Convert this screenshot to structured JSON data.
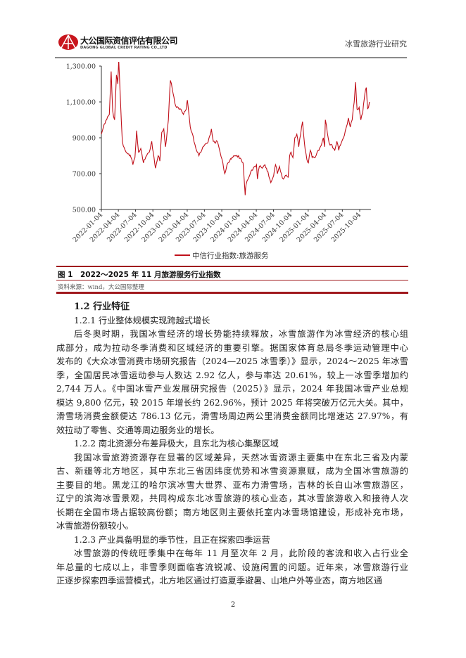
{
  "header": {
    "company_name": "大公国际资信评估有限公司",
    "company_name_en": "DAGONG GLOBAL CREDIT RATING CO.,LTD",
    "report_title": "冰雪旅游行业研究"
  },
  "chart_data": {
    "type": "line",
    "title": "",
    "xlabel": "",
    "ylabel": "",
    "ylim": [
      500,
      1400
    ],
    "yticks": [
      "500.00",
      "700.00",
      "900.00",
      "1,100.00",
      "1,300.00"
    ],
    "ytick_values": [
      500,
      700,
      900,
      1100,
      1300
    ],
    "xticks": [
      "2022-01-04",
      "2022-04-04",
      "2022-07-04",
      "2022-10-04",
      "2023-01-04",
      "2023-04-04",
      "2023-07-04",
      "2023-10-04",
      "2024-01-04",
      "2024-04-04",
      "2024-07-04",
      "2024-10-04",
      "2025-01-04",
      "2025-04-04",
      "2025-07-04",
      "2025-10-04"
    ],
    "grid": false,
    "legend_position": "bottom",
    "color": "#c0101a",
    "series": [
      {
        "name": "中信行业指数:旅游服务",
        "points": [
          [
            "2022-01-04",
            920
          ],
          [
            "2022-01-15",
            960
          ],
          [
            "2022-02-01",
            1000
          ],
          [
            "2022-02-15",
            1030
          ],
          [
            "2022-02-25",
            1270
          ],
          [
            "2022-03-05",
            1050
          ],
          [
            "2022-03-15",
            1000
          ],
          [
            "2022-03-25",
            1250
          ],
          [
            "2022-04-01",
            1200
          ],
          [
            "2022-04-06",
            1330
          ],
          [
            "2022-04-15",
            1110
          ],
          [
            "2022-04-25",
            880
          ],
          [
            "2022-05-10",
            830
          ],
          [
            "2022-05-25",
            810
          ],
          [
            "2022-06-10",
            790
          ],
          [
            "2022-06-20",
            750
          ],
          [
            "2022-07-01",
            790
          ],
          [
            "2022-07-10",
            940
          ],
          [
            "2022-07-20",
            820
          ],
          [
            "2022-08-01",
            840
          ],
          [
            "2022-08-15",
            760
          ],
          [
            "2022-09-01",
            800
          ],
          [
            "2022-09-15",
            820
          ],
          [
            "2022-09-28",
            880
          ],
          [
            "2022-10-10",
            790
          ],
          [
            "2022-10-18",
            730
          ],
          [
            "2022-11-01",
            800
          ],
          [
            "2022-11-10",
            770
          ],
          [
            "2022-11-20",
            930
          ],
          [
            "2022-12-01",
            950
          ],
          [
            "2022-12-10",
            850
          ],
          [
            "2022-12-25",
            1000
          ],
          [
            "2023-01-01",
            1150
          ],
          [
            "2023-01-05",
            1220
          ],
          [
            "2023-01-15",
            1170
          ],
          [
            "2023-02-01",
            1080
          ],
          [
            "2023-02-15",
            1070
          ],
          [
            "2023-03-01",
            1060
          ],
          [
            "2023-03-15",
            1030
          ],
          [
            "2023-03-30",
            1060
          ],
          [
            "2023-04-05",
            1110
          ],
          [
            "2023-04-20",
            960
          ],
          [
            "2023-05-05",
            910
          ],
          [
            "2023-05-20",
            840
          ],
          [
            "2023-06-05",
            800
          ],
          [
            "2023-06-20",
            830
          ],
          [
            "2023-07-05",
            860
          ],
          [
            "2023-07-20",
            870
          ],
          [
            "2023-08-01",
            910
          ],
          [
            "2023-08-10",
            950
          ],
          [
            "2023-08-20",
            880
          ],
          [
            "2023-09-01",
            870
          ],
          [
            "2023-09-10",
            880
          ],
          [
            "2023-09-25",
            820
          ],
          [
            "2023-10-10",
            760
          ],
          [
            "2023-10-20",
            700
          ],
          [
            "2023-11-01",
            750
          ],
          [
            "2023-11-15",
            770
          ],
          [
            "2023-12-01",
            790
          ],
          [
            "2023-12-15",
            800
          ],
          [
            "2024-01-01",
            800
          ],
          [
            "2024-01-15",
            780
          ],
          [
            "2024-01-25",
            760
          ],
          [
            "2024-02-05",
            580
          ],
          [
            "2024-02-10",
            640
          ],
          [
            "2024-02-25",
            680
          ],
          [
            "2024-03-10",
            720
          ],
          [
            "2024-03-25",
            740
          ],
          [
            "2024-04-05",
            750
          ],
          [
            "2024-04-10",
            670
          ],
          [
            "2024-04-20",
            740
          ],
          [
            "2024-05-05",
            730
          ],
          [
            "2024-05-20",
            750
          ],
          [
            "2024-06-05",
            710
          ],
          [
            "2024-06-20",
            650
          ],
          [
            "2024-07-05",
            690
          ],
          [
            "2024-07-15",
            750
          ],
          [
            "2024-07-25",
            700
          ],
          [
            "2024-08-05",
            740
          ],
          [
            "2024-08-15",
            700
          ],
          [
            "2024-08-25",
            670
          ],
          [
            "2024-09-05",
            690
          ],
          [
            "2024-09-20",
            680
          ],
          [
            "2024-09-28",
            800
          ],
          [
            "2024-10-05",
            820
          ],
          [
            "2024-10-15",
            790
          ],
          [
            "2024-10-25",
            900
          ],
          [
            "2024-11-05",
            920
          ],
          [
            "2024-11-15",
            850
          ],
          [
            "2024-11-25",
            920
          ],
          [
            "2024-12-05",
            990
          ],
          [
            "2024-12-15",
            870
          ],
          [
            "2024-12-28",
            780
          ],
          [
            "2025-01-05",
            760
          ],
          [
            "2025-01-15",
            830
          ],
          [
            "2025-01-25",
            790
          ],
          [
            "2025-02-10",
            790
          ],
          [
            "2025-02-25",
            830
          ],
          [
            "2025-03-10",
            850
          ],
          [
            "2025-03-25",
            900
          ],
          [
            "2025-04-01",
            850
          ],
          [
            "2025-04-05",
            1000
          ],
          [
            "2025-04-15",
            930
          ],
          [
            "2025-04-25",
            870
          ],
          [
            "2025-05-10",
            860
          ],
          [
            "2025-05-25",
            830
          ],
          [
            "2025-06-05",
            880
          ],
          [
            "2025-06-15",
            830
          ],
          [
            "2025-06-28",
            870
          ],
          [
            "2025-07-10",
            900
          ],
          [
            "2025-07-25",
            960
          ],
          [
            "2025-08-05",
            1010
          ],
          [
            "2025-08-15",
            960
          ],
          [
            "2025-08-25",
            1000
          ],
          [
            "2025-09-05",
            1100
          ],
          [
            "2025-09-12",
            1210
          ],
          [
            "2025-09-20",
            1060
          ],
          [
            "2025-10-01",
            1070
          ],
          [
            "2025-10-10",
            1000
          ],
          [
            "2025-10-20",
            1040
          ],
          [
            "2025-11-01",
            1150
          ],
          [
            "2025-11-08",
            1180
          ],
          [
            "2025-11-15",
            1060
          ],
          [
            "2025-11-25",
            1100
          ]
        ]
      }
    ]
  },
  "figure": {
    "caption": "图 1　2022～2025 年 11 月旅游服务行业指数",
    "source": "资料来源：wind，大公国际整理"
  },
  "section": {
    "heading": "1.2 行业特征",
    "sub1": "1.2.1 行业整体规模实现跨越式增长",
    "p1": [
      "后冬奥时期，我国冰雪经济的增长势能持续释放，冰雪旅游作为冰雪经济的核心组",
      "成部分，成为拉动冬季消费和区域经济的重要引擎。据国家体育总局冬季运动管理中心",
      "发布的《大众冰雪消费市场研究报告（2024—2025 冰雪季）》显示，2024～2025 年冰雪",
      "季，全国居民冰雪运动参与人数达 2.92 亿人，参与率达 20.61%，较上一冰雪季增加约",
      "2,744 万人。《中国冰雪产业发展研究报告（2025）》显示，2024 年我国冰雪产业总规",
      "模达 9,800 亿元，较 2015 年增长约 262.96%，预计 2025 年将突破万亿元大关。其中，",
      "滑雪场消费金额便达 786.13 亿元，滑雪场周边两公里消费金额同比增速达 27.97%，有",
      "效拉动了零售、交通等周边服务业的增长。"
    ],
    "sub2": "1.2.2 南北资源分布差异极大，且东北为核心集聚区域",
    "p2": [
      "我国冰雪旅游资源存在显著的区域差异，天然冰雪资源主要集中在东北三省及内蒙",
      "古、新疆等北方地区，其中东北三省因纬度优势和冰雪资源禀赋，成为全国冰雪旅游的",
      "主要目的地。黑龙江的哈尔滨冰雪大世界、亚布力滑雪场，吉林的长白山冰雪旅游区，",
      "辽宁的滨海冰雪景观，共同构成东北冰雪旅游的核心业态，其冰雪旅游收入和接待人次",
      "长期在全国市场占据较高份额；南方地区则主要依托室内冰雪场馆建设，形成补充市场，",
      "冰雪旅游份额较小。"
    ],
    "sub3": "1.2.3 产业具备明显的季节性，且正在探索四季运营",
    "p3": [
      "冰雪旅游的传统旺季集中在每年 11 月至次年 2 月，此阶段的客流和收入占行业全",
      "年总量的七成以上，非雪季则面临客流锐减、设施闲置的问题。近年来，冰雪旅游行业",
      "正逐步探索四季运营模式，北方地区通过打造夏季避暑、山地户外等业态，南方地区通"
    ]
  },
  "page_number": "2"
}
